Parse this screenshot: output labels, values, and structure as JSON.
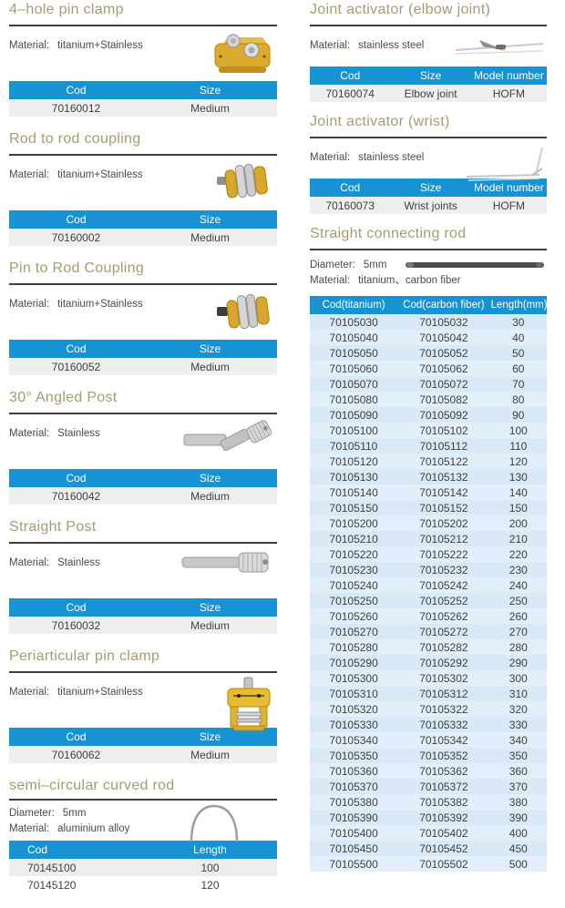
{
  "palette": {
    "accent_blue": "#1793d4",
    "title_olive": "#a49c72",
    "divider_dark": "#3d3d3d",
    "row_gray": "#efefef",
    "row_blue": "#d9e9f6"
  },
  "left_column": {
    "sections": [
      {
        "title": "4–hole pin clamp",
        "info": [
          {
            "label": "Material:",
            "value": "titanium+Stainless"
          }
        ],
        "image": "four-hole-pin-clamp",
        "table": {
          "columns": [
            "Cod",
            "Size"
          ],
          "rows": [
            [
              "70160012",
              "Medium"
            ]
          ]
        }
      },
      {
        "title": "Rod to rod coupling",
        "info": [
          {
            "label": "Material:",
            "value": "titanium+Stainless"
          }
        ],
        "image": "rod-to-rod-coupling",
        "table": {
          "columns": [
            "Cod",
            "Size"
          ],
          "rows": [
            [
              "70160002",
              "Medium"
            ]
          ]
        }
      },
      {
        "title": "Pin to Rod Coupling",
        "info": [
          {
            "label": "Material:",
            "value": "titanium+Stainless"
          }
        ],
        "image": "pin-to-rod-coupling",
        "table": {
          "columns": [
            "Cod",
            "Size"
          ],
          "rows": [
            [
              "70160052",
              "Medium"
            ]
          ]
        }
      },
      {
        "title": "30° Angled Post",
        "info": [
          {
            "label": "Material:",
            "value": "Stainless"
          }
        ],
        "image": "angled-post",
        "table": {
          "columns": [
            "Cod",
            "Size"
          ],
          "rows": [
            [
              "70160042",
              "Medium"
            ]
          ]
        }
      },
      {
        "title": "Straight Post",
        "info": [
          {
            "label": "Material:",
            "value": "Stainless"
          }
        ],
        "image": "straight-post",
        "table": {
          "columns": [
            "Cod",
            "Size"
          ],
          "rows": [
            [
              "70160032",
              "Medium"
            ]
          ]
        }
      },
      {
        "title": "Periarticular pin clamp",
        "info": [
          {
            "label": "Material:",
            "value": "titanium+Stainless"
          }
        ],
        "image": "periarticular-pin-clamp",
        "table": {
          "columns": [
            "Cod",
            "Size"
          ],
          "rows": [
            [
              "70160062",
              "Medium"
            ]
          ]
        }
      },
      {
        "title": "semi–circular curved rod",
        "info": [
          {
            "label": "Diameter:",
            "value": "5mm"
          },
          {
            "label": "Material:",
            "value": "aluminium alloy"
          }
        ],
        "image": "semi-circular-rod",
        "table": {
          "columns": [
            "Cod",
            "Length"
          ],
          "rows": [
            [
              "70145100",
              "100"
            ],
            [
              "70145120",
              "120"
            ]
          ]
        }
      }
    ]
  },
  "right_column": {
    "sections": [
      {
        "title": "Joint activator (elbow joint)",
        "info": [
          {
            "label": "Material:",
            "value": "stainless steel"
          }
        ],
        "image": "elbow-activator",
        "table": {
          "columns": [
            "Cod",
            "Size",
            "Model number"
          ],
          "rows": [
            [
              "70160074",
              "Elbow joint",
              "HOFM"
            ]
          ]
        }
      },
      {
        "title": "Joint activator (wrist)",
        "info": [
          {
            "label": "Material:",
            "value": "stainless steel"
          }
        ],
        "image": "wrist-activator",
        "table": {
          "columns": [
            "Cod",
            "Size",
            "Model number"
          ],
          "rows": [
            [
              "70160073",
              "Wrist joints",
              "HOFM"
            ]
          ]
        }
      },
      {
        "title": "Straight connecting rod",
        "info": [
          {
            "label": "Diameter:",
            "value": "5mm"
          },
          {
            "label": "Material:",
            "value": "titanium、carbon fiber"
          }
        ],
        "image": "straight-rod",
        "table": {
          "columns": [
            "Cod(titanium)",
            "Cod(carbon fiber)",
            "Length(mm)"
          ],
          "rows": [
            [
              "70105030",
              "70105032",
              "30"
            ],
            [
              "70105040",
              "70105042",
              "40"
            ],
            [
              "70105050",
              "70105052",
              "50"
            ],
            [
              "70105060",
              "70105062",
              "60"
            ],
            [
              "70105070",
              "70105072",
              "70"
            ],
            [
              "70105080",
              "70105082",
              "80"
            ],
            [
              "70105090",
              "70105092",
              "90"
            ],
            [
              "70105100",
              "70105102",
              "100"
            ],
            [
              "70105110",
              "70105112",
              "110"
            ],
            [
              "70105120",
              "70105122",
              "120"
            ],
            [
              "70105130",
              "70105132",
              "130"
            ],
            [
              "70105140",
              "70105142",
              "140"
            ],
            [
              "70105150",
              "70105152",
              "150"
            ],
            [
              "70105200",
              "70105202",
              "200"
            ],
            [
              "70105210",
              "70105212",
              "210"
            ],
            [
              "70105220",
              "70105222",
              "220"
            ],
            [
              "70105230",
              "70105232",
              "230"
            ],
            [
              "70105240",
              "70105242",
              "240"
            ],
            [
              "70105250",
              "70105252",
              "250"
            ],
            [
              "70105260",
              "70105262",
              "260"
            ],
            [
              "70105270",
              "70105272",
              "270"
            ],
            [
              "70105280",
              "70105282",
              "280"
            ],
            [
              "70105290",
              "70105292",
              "290"
            ],
            [
              "70105300",
              "70105302",
              "300"
            ],
            [
              "70105310",
              "70105312",
              "310"
            ],
            [
              "70105320",
              "70105322",
              "320"
            ],
            [
              "70105330",
              "70105332",
              "330"
            ],
            [
              "70105340",
              "70105342",
              "340"
            ],
            [
              "70105350",
              "70105352",
              "350"
            ],
            [
              "70105360",
              "70105362",
              "360"
            ],
            [
              "70105370",
              "70105372",
              "370"
            ],
            [
              "70105380",
              "70105382",
              "380"
            ],
            [
              "70105390",
              "70105392",
              "390"
            ],
            [
              "70105400",
              "70105402",
              "400"
            ],
            [
              "70105450",
              "70105452",
              "450"
            ],
            [
              "70105500",
              "70105502",
              "500"
            ]
          ]
        }
      }
    ]
  }
}
